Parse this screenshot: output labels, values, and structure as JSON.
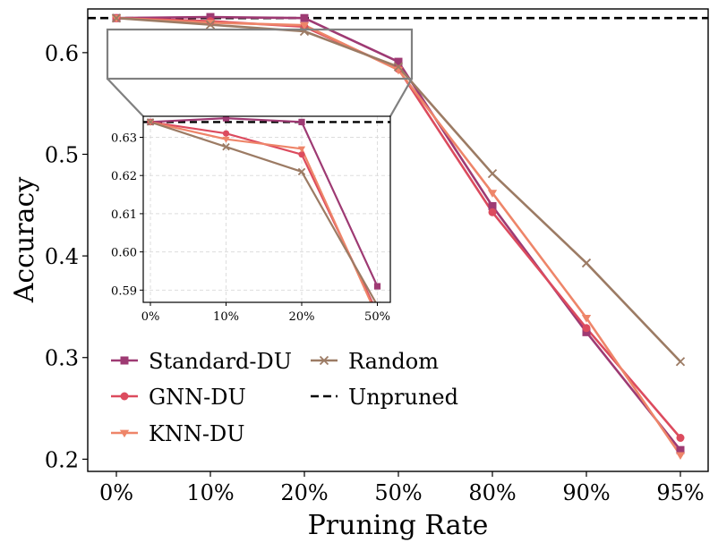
{
  "chart_data": {
    "type": "line",
    "xlabel": "Pruning Rate",
    "ylabel": "Accuracy",
    "categories": [
      "0%",
      "10%",
      "20%",
      "50%",
      "80%",
      "90%",
      "95%"
    ],
    "ylim": [
      0.188,
      0.643
    ],
    "yticks": [
      0.2,
      0.3,
      0.4,
      0.5,
      0.6
    ],
    "ytick_labels": [
      "0.2",
      "0.3",
      "0.4",
      "0.5",
      "0.6"
    ],
    "grid": false,
    "legend_position": "bottom-left",
    "series": [
      {
        "name": "Standard-DU",
        "color": "#9e3a73",
        "marker": "square",
        "values": [
          0.634,
          0.635,
          0.634,
          0.591,
          0.449,
          0.325,
          0.209
        ]
      },
      {
        "name": "GNN-DU",
        "color": "#dc4b5e",
        "marker": "circle",
        "values": [
          0.634,
          0.631,
          0.6255,
          0.584,
          0.443,
          0.329,
          0.221
        ]
      },
      {
        "name": "KNN-DU",
        "color": "#ee8569",
        "marker": "triangle-down",
        "values": [
          0.634,
          0.6295,
          0.627,
          0.583,
          0.462,
          0.339,
          0.204
        ]
      },
      {
        "name": "Random",
        "color": "#9c7b64",
        "marker": "x",
        "values": [
          0.634,
          0.6275,
          0.621,
          0.586,
          0.481,
          0.393,
          0.296
        ]
      }
    ],
    "reference_line": {
      "name": "Unpruned",
      "value": 0.634,
      "color": "#000000",
      "style": "dashed"
    },
    "inset": {
      "categories": [
        "0%",
        "10%",
        "20%",
        "50%"
      ],
      "ylim": [
        0.5868,
        0.6355
      ],
      "yticks": [
        0.59,
        0.6,
        0.61,
        0.62,
        0.63
      ],
      "ytick_labels": [
        "0.59",
        "0.60",
        "0.61",
        "0.62",
        "0.63"
      ],
      "grid": true
    }
  }
}
